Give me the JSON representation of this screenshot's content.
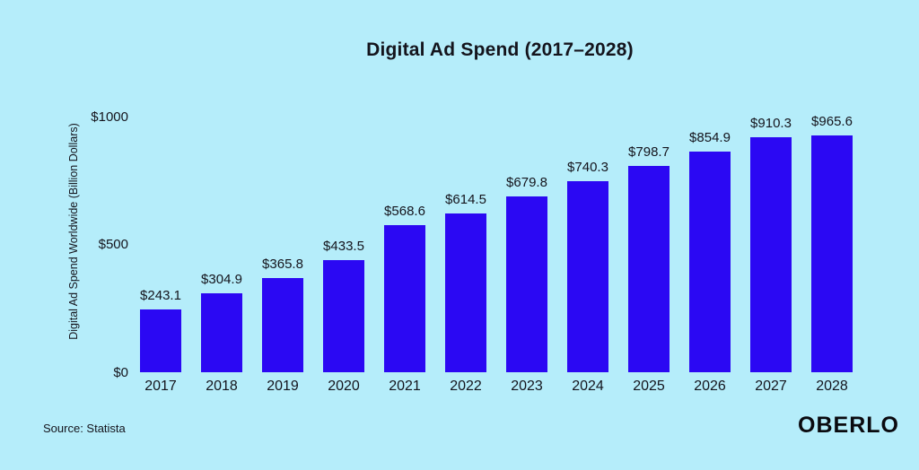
{
  "colors": {
    "background": "#b5edfa",
    "bar": "#2b08f3",
    "text": "#14141c"
  },
  "chart_data": {
    "type": "bar",
    "title": "Digital Ad Spend (2017–2028)",
    "ylabel": "Digital Ad Spend Worldwide (Billion Dollars)",
    "xlabel": "",
    "categories": [
      "2017",
      "2018",
      "2019",
      "2020",
      "2021",
      "2022",
      "2023",
      "2024",
      "2025",
      "2026",
      "2027",
      "2028"
    ],
    "values": [
      243.1,
      304.9,
      365.8,
      433.5,
      568.6,
      614.5,
      679.8,
      740.3,
      798.7,
      854.9,
      910.3,
      965.6
    ],
    "bar_labels": [
      "$243.1",
      "$304.9",
      "$365.8",
      "$433.5",
      "$568.6",
      "$614.5",
      "$679.8",
      "$740.3",
      "$798.7",
      "$854.9",
      "$910.3",
      "$965.6"
    ],
    "ylim": [
      0,
      1000
    ],
    "ytick_labels": [
      "$0",
      "$500",
      "$1000"
    ],
    "grid": false,
    "legend_position": "none"
  },
  "footer": {
    "source": "Source: Statista",
    "logo": "OBERLO"
  }
}
